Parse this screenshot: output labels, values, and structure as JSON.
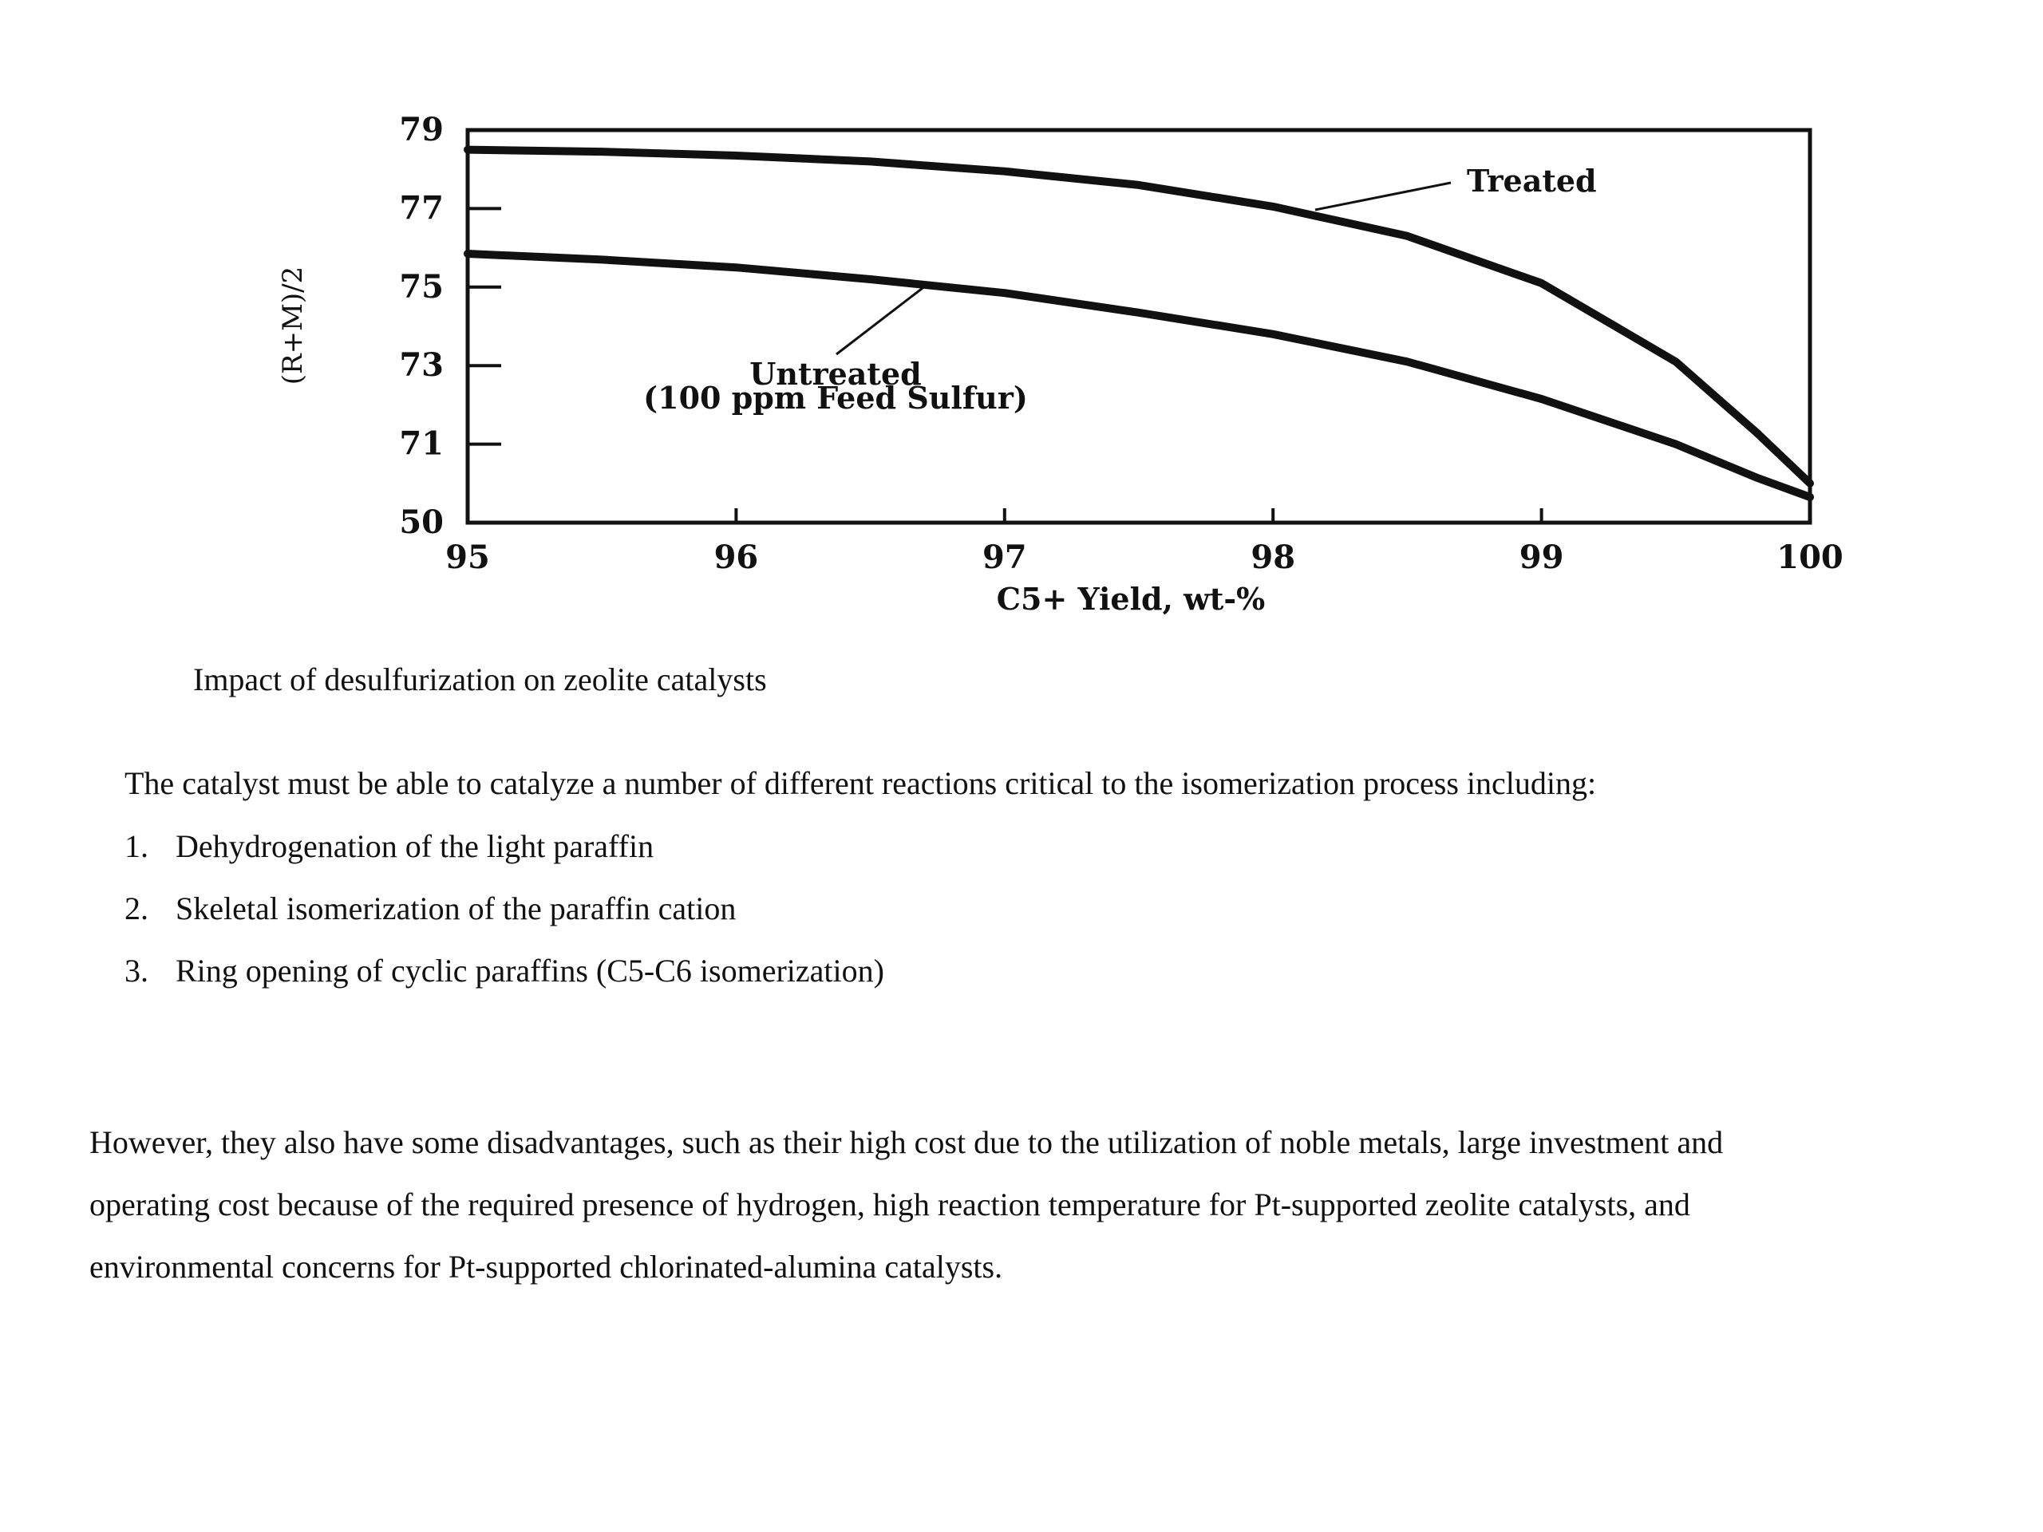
{
  "chart_data": {
    "type": "line",
    "x_ticks": [
      "95",
      "96",
      "97",
      "98",
      "99",
      "100"
    ],
    "y_ticks": [
      "50",
      "71",
      "73",
      "75",
      "77",
      "79"
    ],
    "xlabel": "C5+ Yield, wt-%",
    "ylabel": "(R+M)/2",
    "xlim": [
      95,
      100
    ],
    "ylim": [
      69,
      79
    ],
    "y_axis_break": "lowest tick labeled 50",
    "grid": false,
    "series": [
      {
        "name": "Treated",
        "x": [
          95,
          95.5,
          96,
          96.5,
          97,
          97.5,
          98,
          98.5,
          99,
          99.5,
          99.8,
          100
        ],
        "y": [
          78.5,
          78.45,
          78.35,
          78.2,
          77.95,
          77.6,
          77.05,
          76.3,
          75.1,
          73.1,
          71.3,
          70.0
        ]
      },
      {
        "name": "Untreated (100 ppm Feed Sulfur)",
        "x": [
          95,
          95.5,
          96,
          96.5,
          97,
          97.5,
          98,
          98.5,
          99,
          99.5,
          99.8,
          100
        ],
        "y": [
          75.85,
          75.7,
          75.5,
          75.2,
          74.85,
          74.35,
          73.8,
          73.1,
          72.15,
          71.0,
          70.15,
          69.65
        ]
      }
    ],
    "annotations": {
      "treated": "Treated",
      "untreated_line1": "Untreated",
      "untreated_line2": "(100 ppm Feed Sulfur)"
    }
  },
  "caption": "Impact of desulfurization on zeolite catalysts",
  "intro": "The catalyst must be able to catalyze a number of different reactions critical to the isomerization process including:",
  "list": [
    {
      "num": "1.",
      "text": "Dehydrogenation of the light paraffin"
    },
    {
      "num": "2.",
      "text": "Skeletal isomerization of the paraffin cation"
    },
    {
      "num": "3.",
      "text": "Ring opening of cyclic paraffins (C5-C6 isomerization)"
    }
  ],
  "paragraph": [
    "However, they also have some disadvantages, such as their high cost due to the utilization of noble metals, large investment and",
    "operating cost because of the required presence of hydrogen, high reaction temperature for Pt-supported zeolite catalysts, and",
    "environmental concerns for Pt-supported chlorinated-alumina catalysts."
  ]
}
